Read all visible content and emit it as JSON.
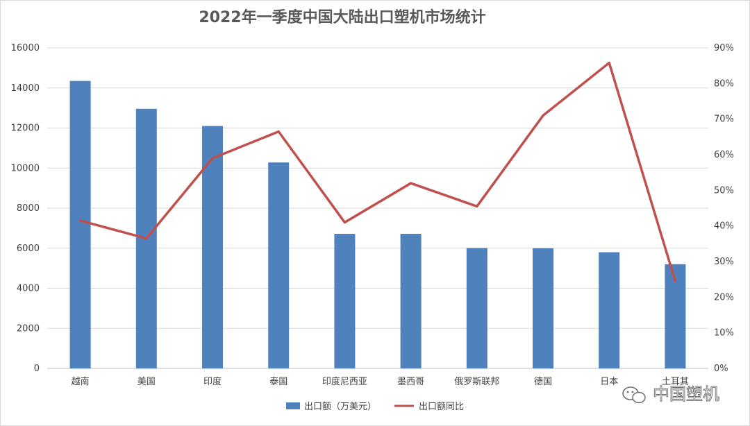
{
  "chart_data": {
    "type": "bar",
    "title": "2022年一季度中国大陆出口塑机市场统计",
    "categories": [
      "越南",
      "美国",
      "印度",
      "泰国",
      "印度尼西亚",
      "墨西哥",
      "俄罗斯联邦",
      "德国",
      "日本",
      "土耳其"
    ],
    "series": [
      {
        "name": "出口额（万美元）",
        "type": "bar",
        "axis": "left",
        "color": "#4f81bd",
        "values": [
          14350,
          12960,
          12100,
          10280,
          6720,
          6720,
          6010,
          6000,
          5800,
          5200
        ]
      },
      {
        "name": "出口额同比",
        "type": "line",
        "axis": "right",
        "color": "#c0504d",
        "values": [
          41.5,
          36.5,
          59.0,
          66.5,
          41.0,
          52.0,
          45.5,
          71.0,
          85.8,
          24.5
        ]
      }
    ],
    "y_left": {
      "min": 0,
      "max": 16000,
      "step": 2000,
      "ticks": [
        "0",
        "2000",
        "4000",
        "6000",
        "8000",
        "10000",
        "12000",
        "14000",
        "16000"
      ]
    },
    "y_right": {
      "min": 0,
      "max": 90,
      "step": 10,
      "ticks": [
        "0%",
        "10%",
        "20%",
        "30%",
        "40%",
        "50%",
        "60%",
        "70%",
        "80%",
        "90%"
      ]
    },
    "grid": true,
    "legend_position": "bottom"
  },
  "watermark": {
    "text": "中国塑机",
    "icon": "wechat-icon"
  }
}
